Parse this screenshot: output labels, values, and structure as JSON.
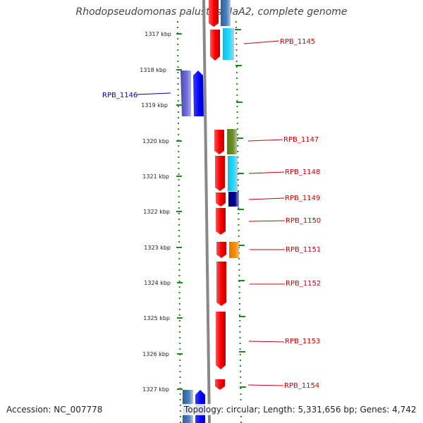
{
  "title": "Rhodopseudomonas palustris HaA2, complete genome",
  "accession": "Accession: NC_007778",
  "topology": "Topology: circular; Length: 5,331,656 bp; Genes: 4,742",
  "ruler_ticks": [
    "1317 kbp",
    "1318 kbp",
    "1319 kbp",
    "1320 kbp",
    "1321 kbp",
    "1322 kbp",
    "1323 kbp",
    "1324 kbp",
    "1325 kbp",
    "1326 kbp",
    "1327 kbp"
  ],
  "gene_labels": [
    {
      "name": "RPB_1145",
      "color": "#cc0000"
    },
    {
      "name": "RPB_1146",
      "color": "#0000aa"
    },
    {
      "name": "RPB_1147",
      "color": "#cc0000"
    },
    {
      "name": "RPB_1148",
      "color": "#cc0000"
    },
    {
      "name": "RPB_1149",
      "color": "#cc0000"
    },
    {
      "name": "RPB_1150",
      "color": "#cc0000"
    },
    {
      "name": "RPB_1151",
      "color": "#cc0000"
    },
    {
      "name": "RPB_1152",
      "color": "#cc0000"
    },
    {
      "name": "RPB_1153",
      "color": "#cc0000"
    },
    {
      "name": "RPB_1154",
      "color": "#cc0000"
    }
  ],
  "colors": {
    "tick_green": "#1a8a1a",
    "backbone": "#888888",
    "gene_red": "#ff0000",
    "gene_blue": "#0000ff",
    "gene_slate": "#5555cc",
    "gene_cyan": "#22ccee",
    "gene_olive": "#6b8e23",
    "gene_navy": "#000080",
    "gene_orange": "#ff8c00"
  }
}
